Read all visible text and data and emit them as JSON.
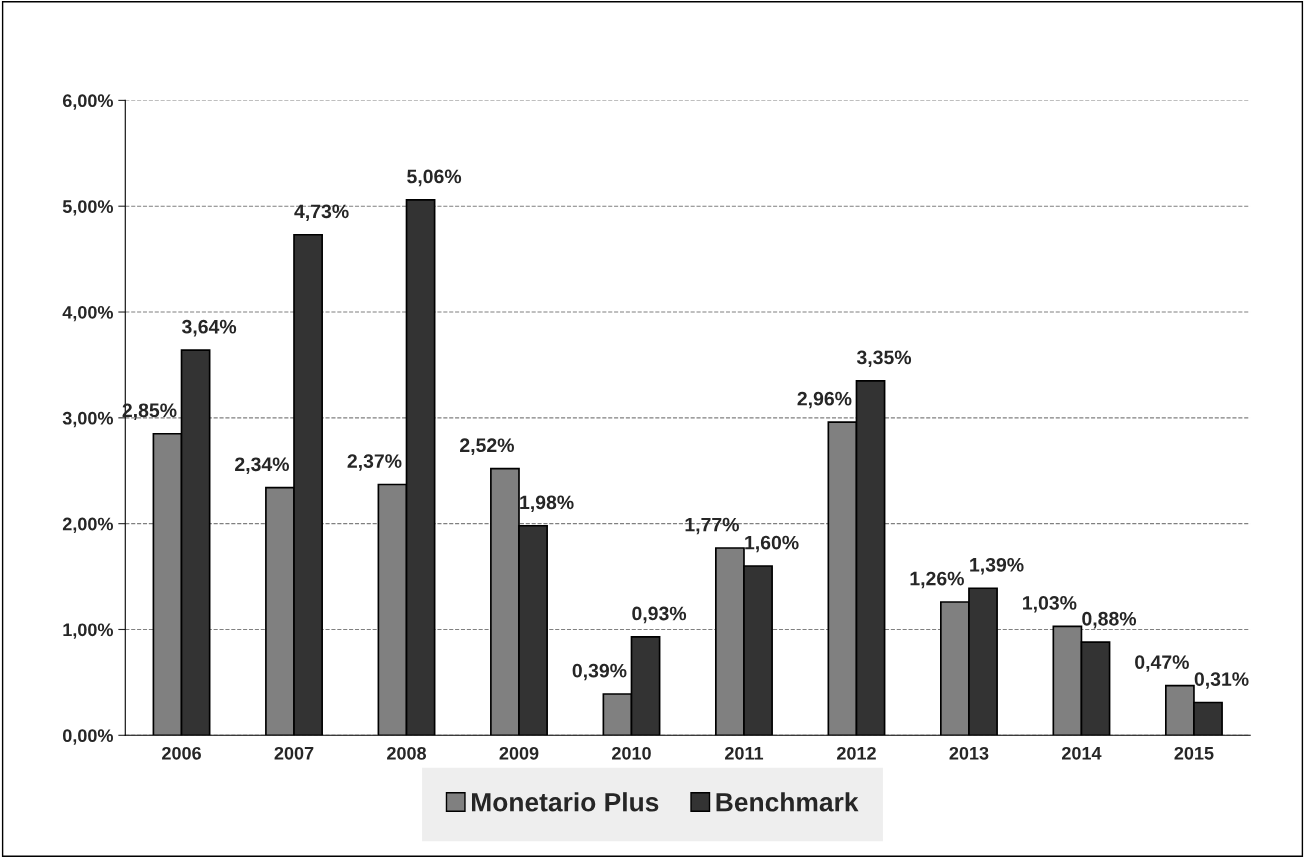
{
  "chart_data": {
    "type": "bar",
    "categories": [
      "2006",
      "2007",
      "2008",
      "2009",
      "2010",
      "2011",
      "2012",
      "2013",
      "2014",
      "2015"
    ],
    "series": [
      {
        "name": "Monetario Plus",
        "color": "#808080",
        "values": [
          2.85,
          2.34,
          2.37,
          2.52,
          0.39,
          1.77,
          2.96,
          1.26,
          1.03,
          0.47
        ],
        "value_labels": [
          "2,85%",
          "2,34%",
          "2,37%",
          "2,52%",
          "0,39%",
          "1,77%",
          "2,96%",
          "1,26%",
          "1,03%",
          "0,47%"
        ]
      },
      {
        "name": "Benchmark",
        "color": "#333333",
        "values": [
          3.64,
          4.73,
          5.06,
          1.98,
          0.93,
          1.6,
          3.35,
          1.39,
          0.88,
          0.31
        ],
        "value_labels": [
          "3,64%",
          "4,73%",
          "5,06%",
          "1,98%",
          "0,93%",
          "1,60%",
          "3,35%",
          "1,39%",
          "0,88%",
          "0,31%"
        ]
      }
    ],
    "ylim": [
      0,
      6
    ],
    "yticks": [
      {
        "value": 0,
        "label": "0,00%"
      },
      {
        "value": 1,
        "label": "1,00%"
      },
      {
        "value": 2,
        "label": "2,00%"
      },
      {
        "value": 3,
        "label": "3,00%"
      },
      {
        "value": 4,
        "label": "4,00%"
      },
      {
        "value": 5,
        "label": "5,00%"
      },
      {
        "value": 6,
        "label": "6,00%"
      }
    ],
    "grid": "y",
    "legend": "bottom"
  }
}
